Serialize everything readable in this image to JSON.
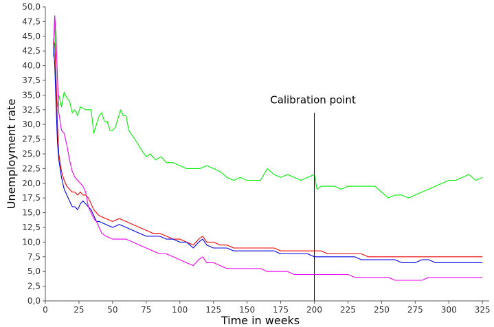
{
  "chart_data": {
    "type": "line",
    "title": "",
    "xlabel": "Time in weeks",
    "ylabel": "Unemployment rate",
    "xlim": [
      0,
      330
    ],
    "ylim": [
      0,
      50
    ],
    "x_ticks": [
      "0",
      "25",
      "50",
      "75",
      "100",
      "125",
      "150",
      "175",
      "200",
      "225",
      "250",
      "275",
      "300",
      "325"
    ],
    "y_ticks": [
      "0,0",
      "2,5",
      "5,0",
      "7,5",
      "10,0",
      "12,5",
      "15,0",
      "17,5",
      "20,0",
      "22,5",
      "25,0",
      "27,5",
      "30,0",
      "32,5",
      "35,0",
      "37,5",
      "40,0",
      "42,5",
      "45,0",
      "47,5",
      "50,0"
    ],
    "grid": false,
    "legend": "none",
    "annotation": {
      "label": "Calibration point",
      "x": 200
    },
    "series": [
      {
        "color": "#00ee00",
        "points": [
          [
            6,
            41.5
          ],
          [
            7,
            48.5
          ],
          [
            8,
            35.0
          ],
          [
            9,
            33.0
          ],
          [
            10,
            35.0
          ],
          [
            12,
            33.0
          ],
          [
            14,
            35.5
          ],
          [
            16,
            34.5
          ],
          [
            18,
            34.0
          ],
          [
            20,
            32.0
          ],
          [
            22,
            32.5
          ],
          [
            24,
            31.5
          ],
          [
            26,
            33.0
          ],
          [
            30,
            32.5
          ],
          [
            34,
            32.5
          ],
          [
            36,
            28.5
          ],
          [
            38,
            30.0
          ],
          [
            40,
            31.5
          ],
          [
            42,
            32.0
          ],
          [
            44,
            30.5
          ],
          [
            46,
            30.5
          ],
          [
            48,
            29.0
          ],
          [
            50,
            29.0
          ],
          [
            52,
            29.5
          ],
          [
            54,
            31.0
          ],
          [
            56,
            32.5
          ],
          [
            58,
            31.5
          ],
          [
            60,
            31.5
          ],
          [
            62,
            29.0
          ],
          [
            65,
            28.0
          ],
          [
            68,
            27.0
          ],
          [
            72,
            25.5
          ],
          [
            75,
            24.5
          ],
          [
            78,
            25.0
          ],
          [
            82,
            24.0
          ],
          [
            86,
            24.5
          ],
          [
            90,
            23.5
          ],
          [
            95,
            23.5
          ],
          [
            100,
            23.0
          ],
          [
            105,
            22.5
          ],
          [
            110,
            22.5
          ],
          [
            115,
            22.5
          ],
          [
            120,
            23.0
          ],
          [
            125,
            22.5
          ],
          [
            130,
            22.0
          ],
          [
            135,
            21.0
          ],
          [
            140,
            20.5
          ],
          [
            145,
            21.0
          ],
          [
            150,
            20.5
          ],
          [
            155,
            20.5
          ],
          [
            160,
            20.5
          ],
          [
            165,
            22.5
          ],
          [
            170,
            21.5
          ],
          [
            175,
            21.0
          ],
          [
            180,
            21.5
          ],
          [
            185,
            21.0
          ],
          [
            190,
            20.5
          ],
          [
            195,
            21.0
          ],
          [
            200,
            21.5
          ],
          [
            202,
            19.0
          ],
          [
            205,
            19.5
          ],
          [
            210,
            19.5
          ],
          [
            215,
            19.5
          ],
          [
            220,
            19.0
          ],
          [
            225,
            19.5
          ],
          [
            230,
            19.5
          ],
          [
            235,
            19.5
          ],
          [
            240,
            19.5
          ],
          [
            245,
            19.5
          ],
          [
            250,
            18.5
          ],
          [
            255,
            17.5
          ],
          [
            260,
            18.0
          ],
          [
            265,
            18.0
          ],
          [
            270,
            17.5
          ],
          [
            275,
            18.0
          ],
          [
            280,
            18.5
          ],
          [
            285,
            19.0
          ],
          [
            290,
            19.5
          ],
          [
            295,
            20.0
          ],
          [
            300,
            20.5
          ],
          [
            305,
            20.5
          ],
          [
            310,
            21.0
          ],
          [
            315,
            21.5
          ],
          [
            320,
            20.5
          ],
          [
            325,
            21.0
          ]
        ]
      },
      {
        "color": "#ee0000",
        "points": [
          [
            6,
            44.5
          ],
          [
            7,
            43.5
          ],
          [
            8,
            38.0
          ],
          [
            9,
            30.0
          ],
          [
            10,
            25.0
          ],
          [
            12,
            22.0
          ],
          [
            14,
            20.5
          ],
          [
            16,
            19.5
          ],
          [
            18,
            19.0
          ],
          [
            20,
            18.5
          ],
          [
            22,
            18.5
          ],
          [
            24,
            18.0
          ],
          [
            26,
            18.5
          ],
          [
            28,
            18.0
          ],
          [
            30,
            18.0
          ],
          [
            32,
            17.5
          ],
          [
            34,
            16.5
          ],
          [
            36,
            15.5
          ],
          [
            38,
            15.0
          ],
          [
            40,
            14.5
          ],
          [
            45,
            14.0
          ],
          [
            50,
            13.5
          ],
          [
            55,
            14.0
          ],
          [
            60,
            13.5
          ],
          [
            65,
            13.0
          ],
          [
            70,
            12.5
          ],
          [
            75,
            12.0
          ],
          [
            80,
            11.5
          ],
          [
            85,
            11.5
          ],
          [
            90,
            11.0
          ],
          [
            95,
            10.5
          ],
          [
            100,
            10.5
          ],
          [
            105,
            10.0
          ],
          [
            110,
            9.5
          ],
          [
            114,
            10.5
          ],
          [
            117,
            11.0
          ],
          [
            120,
            10.0
          ],
          [
            125,
            10.0
          ],
          [
            130,
            9.5
          ],
          [
            135,
            9.5
          ],
          [
            140,
            9.0
          ],
          [
            145,
            9.0
          ],
          [
            150,
            9.0
          ],
          [
            155,
            9.0
          ],
          [
            160,
            9.0
          ],
          [
            165,
            9.0
          ],
          [
            170,
            9.0
          ],
          [
            175,
            8.5
          ],
          [
            180,
            8.5
          ],
          [
            185,
            8.5
          ],
          [
            190,
            8.5
          ],
          [
            195,
            8.5
          ],
          [
            200,
            8.5
          ],
          [
            205,
            8.5
          ],
          [
            210,
            8.0
          ],
          [
            215,
            8.0
          ],
          [
            220,
            8.0
          ],
          [
            225,
            8.0
          ],
          [
            230,
            8.0
          ],
          [
            235,
            8.0
          ],
          [
            240,
            7.5
          ],
          [
            245,
            7.5
          ],
          [
            250,
            7.5
          ],
          [
            255,
            7.5
          ],
          [
            260,
            7.5
          ],
          [
            265,
            7.5
          ],
          [
            270,
            7.5
          ],
          [
            275,
            7.5
          ],
          [
            280,
            7.5
          ],
          [
            285,
            7.5
          ],
          [
            290,
            7.5
          ],
          [
            295,
            7.5
          ],
          [
            300,
            7.5
          ],
          [
            305,
            7.5
          ],
          [
            310,
            7.5
          ],
          [
            315,
            7.5
          ],
          [
            320,
            7.5
          ],
          [
            325,
            7.5
          ]
        ]
      },
      {
        "color": "#0000dd",
        "points": [
          [
            6,
            44.0
          ],
          [
            7,
            40.0
          ],
          [
            8,
            33.0
          ],
          [
            9,
            27.0
          ],
          [
            10,
            24.0
          ],
          [
            12,
            21.0
          ],
          [
            14,
            19.0
          ],
          [
            16,
            18.0
          ],
          [
            18,
            17.0
          ],
          [
            20,
            16.0
          ],
          [
            22,
            16.0
          ],
          [
            24,
            15.5
          ],
          [
            26,
            16.5
          ],
          [
            28,
            17.0
          ],
          [
            30,
            16.5
          ],
          [
            32,
            16.0
          ],
          [
            34,
            15.5
          ],
          [
            36,
            14.5
          ],
          [
            38,
            13.5
          ],
          [
            40,
            13.5
          ],
          [
            45,
            13.0
          ],
          [
            50,
            12.5
          ],
          [
            55,
            13.0
          ],
          [
            60,
            12.5
          ],
          [
            65,
            12.0
          ],
          [
            70,
            11.5
          ],
          [
            75,
            11.0
          ],
          [
            80,
            11.0
          ],
          [
            85,
            11.0
          ],
          [
            90,
            10.5
          ],
          [
            95,
            10.5
          ],
          [
            100,
            10.0
          ],
          [
            105,
            10.0
          ],
          [
            110,
            9.0
          ],
          [
            114,
            10.0
          ],
          [
            117,
            10.5
          ],
          [
            120,
            9.5
          ],
          [
            125,
            9.0
          ],
          [
            130,
            9.0
          ],
          [
            135,
            9.0
          ],
          [
            140,
            8.5
          ],
          [
            145,
            8.5
          ],
          [
            150,
            8.5
          ],
          [
            155,
            8.5
          ],
          [
            160,
            8.5
          ],
          [
            165,
            8.5
          ],
          [
            170,
            8.5
          ],
          [
            175,
            8.0
          ],
          [
            180,
            8.0
          ],
          [
            185,
            8.0
          ],
          [
            190,
            8.0
          ],
          [
            195,
            8.0
          ],
          [
            200,
            7.5
          ],
          [
            205,
            7.5
          ],
          [
            210,
            7.5
          ],
          [
            215,
            7.5
          ],
          [
            220,
            7.5
          ],
          [
            225,
            7.5
          ],
          [
            230,
            7.5
          ],
          [
            235,
            7.0
          ],
          [
            240,
            7.0
          ],
          [
            245,
            7.0
          ],
          [
            250,
            7.0
          ],
          [
            255,
            7.0
          ],
          [
            260,
            7.0
          ],
          [
            265,
            6.5
          ],
          [
            270,
            6.5
          ],
          [
            275,
            6.5
          ],
          [
            280,
            7.0
          ],
          [
            285,
            7.0
          ],
          [
            290,
            6.5
          ],
          [
            295,
            6.5
          ],
          [
            300,
            6.5
          ],
          [
            305,
            6.5
          ],
          [
            310,
            6.5
          ],
          [
            315,
            6.5
          ],
          [
            320,
            6.5
          ],
          [
            325,
            6.5
          ]
        ]
      },
      {
        "color": "#ee00ee",
        "points": [
          [
            6,
            43.0
          ],
          [
            7,
            48.5
          ],
          [
            8,
            45.0
          ],
          [
            9,
            38.0
          ],
          [
            10,
            32.0
          ],
          [
            12,
            29.0
          ],
          [
            14,
            28.5
          ],
          [
            16,
            26.5
          ],
          [
            18,
            24.0
          ],
          [
            20,
            22.0
          ],
          [
            22,
            21.0
          ],
          [
            24,
            20.5
          ],
          [
            26,
            20.0
          ],
          [
            28,
            19.5
          ],
          [
            30,
            18.5
          ],
          [
            32,
            16.0
          ],
          [
            34,
            15.0
          ],
          [
            36,
            14.0
          ],
          [
            38,
            13.5
          ],
          [
            40,
            12.5
          ],
          [
            42,
            11.5
          ],
          [
            45,
            11.0
          ],
          [
            50,
            10.5
          ],
          [
            55,
            10.5
          ],
          [
            60,
            10.5
          ],
          [
            65,
            10.0
          ],
          [
            70,
            9.5
          ],
          [
            75,
            9.0
          ],
          [
            80,
            8.5
          ],
          [
            85,
            8.0
          ],
          [
            90,
            8.0
          ],
          [
            95,
            7.5
          ],
          [
            100,
            7.0
          ],
          [
            105,
            6.5
          ],
          [
            110,
            6.0
          ],
          [
            114,
            7.0
          ],
          [
            117,
            7.5
          ],
          [
            120,
            6.5
          ],
          [
            125,
            6.5
          ],
          [
            130,
            6.0
          ],
          [
            135,
            5.5
          ],
          [
            140,
            5.5
          ],
          [
            145,
            5.5
          ],
          [
            150,
            5.5
          ],
          [
            155,
            5.5
          ],
          [
            160,
            5.5
          ],
          [
            165,
            5.0
          ],
          [
            170,
            5.0
          ],
          [
            175,
            5.0
          ],
          [
            180,
            5.0
          ],
          [
            185,
            4.5
          ],
          [
            190,
            4.5
          ],
          [
            195,
            4.5
          ],
          [
            200,
            4.5
          ],
          [
            205,
            4.5
          ],
          [
            210,
            4.5
          ],
          [
            215,
            4.5
          ],
          [
            220,
            4.5
          ],
          [
            225,
            4.5
          ],
          [
            230,
            4.0
          ],
          [
            235,
            4.0
          ],
          [
            240,
            4.0
          ],
          [
            245,
            4.0
          ],
          [
            250,
            4.0
          ],
          [
            255,
            4.0
          ],
          [
            260,
            3.5
          ],
          [
            265,
            3.5
          ],
          [
            270,
            3.5
          ],
          [
            275,
            3.5
          ],
          [
            280,
            3.5
          ],
          [
            285,
            4.0
          ],
          [
            290,
            4.0
          ],
          [
            295,
            4.0
          ],
          [
            300,
            4.0
          ],
          [
            305,
            4.0
          ],
          [
            310,
            4.0
          ],
          [
            315,
            4.0
          ],
          [
            320,
            4.0
          ],
          [
            325,
            4.0
          ]
        ]
      }
    ]
  }
}
